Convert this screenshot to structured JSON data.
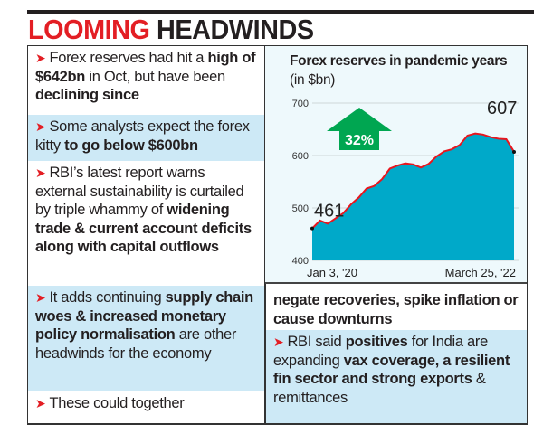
{
  "headline": {
    "part1": "LOOMING",
    "part2": "HEADWINDS",
    "colors": {
      "accent": "#e31e24",
      "dark": "#231f20"
    }
  },
  "left_items": [
    {
      "bg": "white",
      "parts": [
        {
          "t": "Forex reserves had hit a ",
          "b": false
        },
        {
          "t": "high of $642bn",
          "b": true
        },
        {
          "t": " in Oct, but have been ",
          "b": false
        },
        {
          "t": "declining since",
          "b": true
        }
      ]
    },
    {
      "bg": "blue",
      "parts": [
        {
          "t": "Some analysts expect the forex kitty ",
          "b": false
        },
        {
          "t": "to go below $600bn",
          "b": true
        }
      ]
    },
    {
      "bg": "white",
      "parts": [
        {
          "t": "RBI’s latest report warns external sustainability is curtailed by triple whammy of ",
          "b": false
        },
        {
          "t": "widening trade & current account deficits along with capital outflows",
          "b": true
        }
      ]
    },
    {
      "bg": "blue",
      "parts": [
        {
          "t": "It adds continuing ",
          "b": false
        },
        {
          "t": "supply chain woes & increased monetary policy normalisation",
          "b": true
        },
        {
          "t": " are other headwinds for the economy",
          "b": false
        }
      ]
    },
    {
      "bg": "white",
      "parts": [
        {
          "t": "These could together",
          "b": false
        }
      ]
    }
  ],
  "right_items": [
    {
      "bg": "white",
      "bullet": false,
      "parts": [
        {
          "t": "negate recoveries, spike inflation or cause downturns",
          "b": true
        }
      ]
    },
    {
      "bg": "blue",
      "bullet": true,
      "parts": [
        {
          "t": "RBI said ",
          "b": false
        },
        {
          "t": "positives",
          "b": true
        },
        {
          "t": " for India are expanding ",
          "b": false
        },
        {
          "t": "vax coverage, a resilient fin sector and strong exports",
          "b": true
        },
        {
          "t": " & remittances",
          "b": false
        }
      ]
    }
  ],
  "chart_data": {
    "type": "area",
    "title": "Forex reserves in pandemic years",
    "unit_label": "(in $bn)",
    "ylim": [
      400,
      700
    ],
    "yticks": [
      "400",
      "500",
      "600",
      "700"
    ],
    "xtick_labels": [
      "Jan 3, '20",
      "March 25, '22"
    ],
    "x": [
      "Jan 20",
      "Feb 20",
      "Mar 20",
      "Apr 20",
      "May 20",
      "Jun 20",
      "Jul 20",
      "Aug 20",
      "Sep 20",
      "Oct 20",
      "Nov 20",
      "Dec 20",
      "Jan 21",
      "Feb 21",
      "Mar 21",
      "Apr 21",
      "May 21",
      "Jun 21",
      "Jul 21",
      "Aug 21",
      "Sep 21",
      "Oct 21",
      "Nov 21",
      "Dec 21",
      "Jan 22",
      "Feb 22",
      "Mar 22"
    ],
    "values": [
      461,
      476,
      470,
      480,
      490,
      507,
      520,
      537,
      542,
      555,
      575,
      581,
      585,
      583,
      577,
      584,
      598,
      608,
      612,
      620,
      638,
      642,
      640,
      635,
      632,
      631,
      607
    ],
    "annotations": {
      "start": "461",
      "end": "607",
      "growth": "32%"
    },
    "colors": {
      "fill": "#00a9c9",
      "line": "#e8161e",
      "arrow": "#00a651"
    },
    "grid": true
  }
}
